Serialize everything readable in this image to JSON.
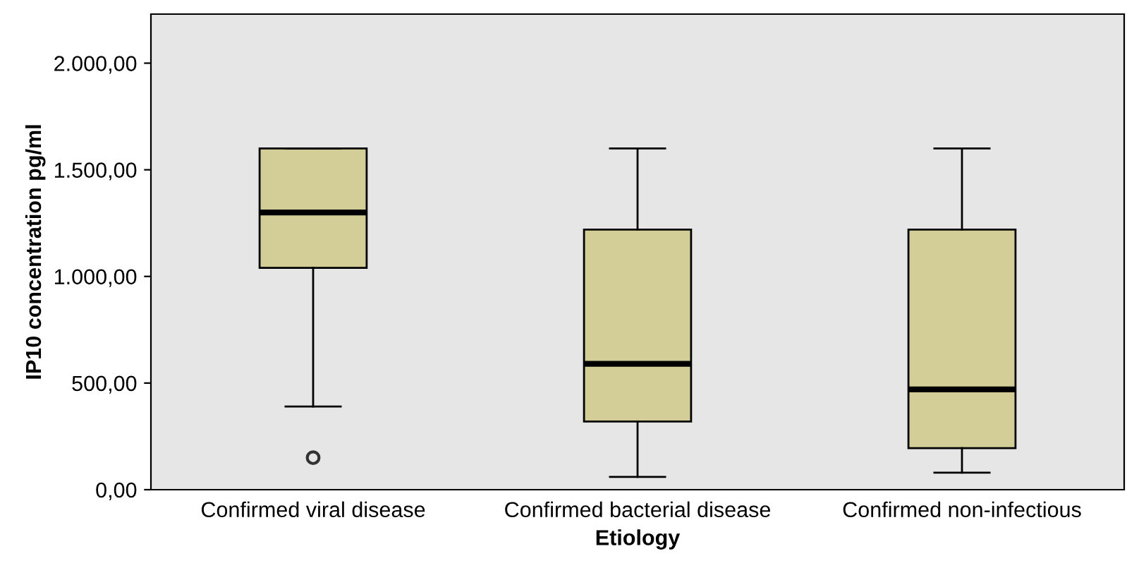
{
  "chart_data": {
    "type": "box",
    "xlabel": "Etiology",
    "ylabel": "IP10 concentration pg/ml",
    "categories": [
      "Confirmed viral disease",
      "Confirmed bacterial disease",
      "Confirmed non-infectious"
    ],
    "boxes": [
      {
        "low": 390,
        "q1": 1040,
        "median": 1300,
        "q3": 1600,
        "high": 1600,
        "outliers": [
          150
        ]
      },
      {
        "low": 60,
        "q1": 320,
        "median": 590,
        "q3": 1220,
        "high": 1600
      },
      {
        "low": 80,
        "q1": 195,
        "median": 470,
        "q3": 1220,
        "high": 1600
      }
    ],
    "color": "#d3ce98",
    "ylim": [
      0,
      2230
    ],
    "yticks": [
      {
        "value": 0,
        "label": "0,00"
      },
      {
        "value": 500,
        "label": "500,00"
      },
      {
        "value": 1000,
        "label": "1.000,00"
      },
      {
        "value": 1500,
        "label": "1.500,00"
      },
      {
        "value": 2000,
        "label": "2.000,00"
      }
    ],
    "grid": false
  }
}
